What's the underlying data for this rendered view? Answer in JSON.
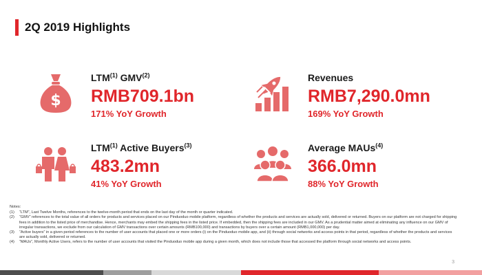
{
  "title": "2Q 2019 Highlights",
  "colors": {
    "accent": "#e0262b",
    "icon": "#e56a6a",
    "text": "#1a1a1a"
  },
  "metrics": {
    "gmv": {
      "icon": "money-bag-icon",
      "label": "LTM",
      "sup1": "(1)",
      "label2": " GMV",
      "sup2": "(2)",
      "value": "RMB709.1bn",
      "growth": "171% YoY Growth"
    },
    "revenues": {
      "icon": "rocket-chart-icon",
      "label": "Revenues",
      "value": "RMB7,290.0mn",
      "growth": "169% YoY Growth"
    },
    "buyers": {
      "icon": "shoppers-icon",
      "label": "LTM",
      "sup1": "(1)",
      "label2": " Active Buyers",
      "sup2": "(3)",
      "value": "483.2mn",
      "growth": "41% YoY Growth"
    },
    "maus": {
      "icon": "users-group-icon",
      "label": "Average MAUs",
      "sup1": "(4)",
      "value": "366.0mn",
      "growth": "88% YoY Growth"
    }
  },
  "notes": {
    "title": "Notes:",
    "items": [
      {
        "num": "(1)",
        "text": "“LTM”, Last Twelve Months, references to the twelve-month period that ends on the last day of the month or quarter indicated."
      },
      {
        "num": "(2)",
        "text": "“GMV” references to the total value of all orders for products and services placed on our Pinduoduo mobile platform, regardless of whether the products and services are actually sold, delivered or returned. Buyers on our platform are not charged for shipping fees in addition to the listed price of merchandise. Hence, merchants may embed the shipping fees in the listed price. If embedded, then the shipping fees are included in our GMV. As a prudential matter aimed at eliminating any influence on our GMV of irregular transactions, we exclude from our calculation of GMV transactions over certain amounts (RMB100,000) and transactions by buyers over a certain amount (RMB1,000,000) per day."
      },
      {
        "num": "(3)",
        "text": "“Active buyers” in a given period references to the number of user accounts that placed one or more orders (i) on the Pinduoduo mobile app, and (ii) through social networks and access points in that period, regardless of whether the products and services are actually sold, delivered or returned."
      },
      {
        "num": "(4)",
        "text": "“MAUs”, Monthly Active Users, refers to the number of user accounts that visited the Pinduoduo mobile app during a given month, which does not include those that accessed the platform through social networks and access points."
      }
    ]
  },
  "page_number": "3",
  "footer_colors": [
    "#4d4d4d",
    "#9e9e9e",
    "#d9d9d9",
    "#e0262b",
    "#f2a0a0"
  ]
}
